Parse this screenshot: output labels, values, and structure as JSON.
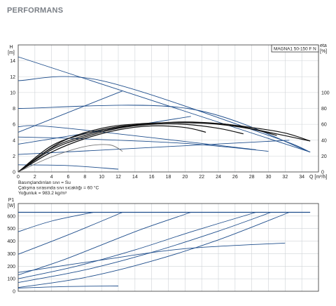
{
  "page": {
    "title": "PERFORMANS"
  },
  "colors": {
    "frame": "#333333",
    "grid": "#cfd3d7",
    "blue": "#1f4e8c",
    "black": "#111111",
    "gray": "#777777"
  },
  "chart_data": [
    {
      "type": "line",
      "model_label": "MAGNA1 50-150 F N",
      "left_axis_label": [
        "H",
        "[m]"
      ],
      "right_axis_label": [
        "eta",
        "[%]"
      ],
      "xlabel": "Q [m³/h]",
      "xlim": [
        0,
        36
      ],
      "ylim": [
        0,
        16
      ],
      "ylim_right": [
        0,
        160
      ],
      "x_ticks": [
        0,
        2,
        4,
        6,
        8,
        10,
        12,
        14,
        16,
        18,
        20,
        22,
        24,
        26,
        28,
        30,
        32,
        34
      ],
      "y_ticks": [
        0,
        2,
        4,
        6,
        8,
        10,
        12,
        14
      ],
      "y_right_ticks": [
        0,
        20,
        40,
        60,
        80,
        100
      ],
      "grid": true,
      "notes": [
        "Basınçlandırılan sıvı = Su",
        "Çalışma sırasında sıvı sıcaklığı = 60 °C",
        "Yoğunluk = 983.2 kg/m³"
      ],
      "series": [
        {
          "style": "blue",
          "x": [
            0,
            35
          ],
          "y": [
            14.5,
            2.5
          ]
        },
        {
          "style": "blue",
          "x": [
            0,
            10,
            30.3,
            35
          ],
          "y": [
            11.5,
            11.5,
            4.5,
            2.5
          ]
        },
        {
          "style": "blue",
          "x": [
            0,
            20.3,
            35
          ],
          "y": [
            8,
            8,
            2.5
          ]
        },
        {
          "style": "blue",
          "x": [
            0,
            5,
            28.5
          ],
          "y": [
            5.7,
            5.6,
            2.8
          ]
        },
        {
          "style": "blue",
          "x": [
            0,
            7,
            20,
            30
          ],
          "y": [
            4.4,
            4.2,
            3.6,
            2.6
          ]
        },
        {
          "style": "blue",
          "x": [
            0,
            6,
            12
          ],
          "y": [
            0.9,
            0.8,
            0.35
          ]
        },
        {
          "style": "blue",
          "x": [
            0,
            12.5
          ],
          "y": [
            5.0,
            10.2
          ]
        },
        {
          "style": "blue",
          "x": [
            0,
            20.7
          ],
          "y": [
            3.5,
            7.0
          ]
        },
        {
          "style": "blue",
          "x": [
            0,
            32.5
          ],
          "y": [
            2.2,
            4.0
          ]
        },
        {
          "style": "black",
          "x": [
            0,
            5,
            10,
            15,
            20,
            25,
            30,
            35
          ],
          "y": [
            0,
            3.7,
            5.5,
            6.1,
            6.2,
            6.0,
            5.0,
            3.9
          ]
        },
        {
          "style": "black",
          "x": [
            0,
            4,
            8,
            12,
            16,
            20,
            24,
            28,
            32,
            35
          ],
          "y": [
            0,
            3.3,
            4.8,
            5.7,
            6.1,
            6.3,
            6.1,
            5.6,
            4.9,
            3.9
          ]
        },
        {
          "style": "black",
          "x": [
            0,
            4,
            8,
            12,
            16,
            20,
            24,
            28,
            31
          ],
          "y": [
            0,
            3.0,
            4.6,
            5.6,
            6.1,
            6.2,
            6.0,
            5.4,
            4.6
          ]
        },
        {
          "style": "black",
          "x": [
            0,
            4,
            8,
            12,
            16,
            20,
            24,
            27
          ],
          "y": [
            0,
            2.8,
            4.4,
            5.5,
            6.0,
            6.0,
            5.5,
            4.8
          ]
        },
        {
          "style": "black",
          "x": [
            0,
            4,
            8,
            12,
            16,
            20,
            22.5
          ],
          "y": [
            0,
            2.5,
            4.2,
            5.3,
            5.8,
            5.6,
            5.0
          ]
        },
        {
          "style": "gray",
          "x": [
            0,
            4,
            8,
            11,
            12.5
          ],
          "y": [
            0,
            1.9,
            3.2,
            3.4,
            2.6
          ]
        }
      ]
    },
    {
      "type": "line",
      "left_axis_label": [
        "P1",
        "[W]"
      ],
      "xlim": [
        0,
        36
      ],
      "ylim": [
        0,
        700
      ],
      "x_ticks": [
        0,
        2,
        4,
        6,
        8,
        10,
        12,
        14,
        16,
        18,
        20,
        22,
        24,
        26,
        28,
        30,
        32,
        34
      ],
      "y_ticks": [
        0,
        100,
        200,
        300,
        400,
        500,
        600
      ],
      "grid": true,
      "series": [
        {
          "style": "blue",
          "x": [
            0,
            35
          ],
          "y": [
            630,
            630
          ]
        },
        {
          "style": "blue",
          "x": [
            0,
            4,
            9
          ],
          "y": [
            475,
            560,
            630
          ]
        },
        {
          "style": "blue",
          "x": [
            0,
            6,
            12.5
          ],
          "y": [
            295,
            450,
            630
          ]
        },
        {
          "style": "blue",
          "x": [
            0,
            5,
            10,
            15,
            20.7
          ],
          "y": [
            130,
            240,
            370,
            500,
            630
          ]
        },
        {
          "style": "blue",
          "x": [
            0,
            7,
            14,
            21,
            28.5
          ],
          "y": [
            100,
            200,
            330,
            480,
            630
          ]
        },
        {
          "style": "blue",
          "x": [
            0,
            8,
            16,
            24,
            30.3
          ],
          "y": [
            70,
            170,
            310,
            480,
            630
          ]
        },
        {
          "style": "blue",
          "x": [
            0,
            8,
            16,
            24,
            32.5
          ],
          "y": [
            30,
            110,
            240,
            410,
            630
          ]
        },
        {
          "style": "blue",
          "x": [
            0,
            10,
            20,
            32
          ],
          "y": [
            150,
            250,
            340,
            385
          ]
        },
        {
          "style": "blue",
          "x": [
            0,
            6,
            12
          ],
          "y": [
            25,
            38,
            42
          ]
        }
      ]
    }
  ]
}
